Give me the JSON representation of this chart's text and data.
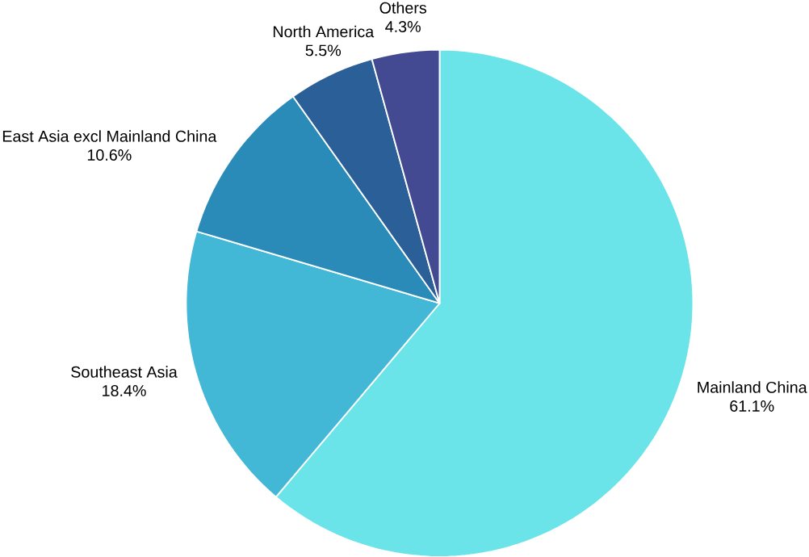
{
  "chart_data": {
    "type": "pie",
    "categories": [
      "Mainland China",
      "Southeast Asia",
      "East Asia excl Mainland China",
      "North America",
      "Others"
    ],
    "values": [
      61.1,
      18.4,
      10.6,
      5.5,
      4.3
    ],
    "value_labels": [
      "61.1%",
      "18.4%",
      "10.6%",
      "5.5%",
      "4.3%"
    ],
    "colors": [
      "#6ae4e9",
      "#42b8d6",
      "#2a8bb8",
      "#2b5f97",
      "#434a91"
    ]
  }
}
